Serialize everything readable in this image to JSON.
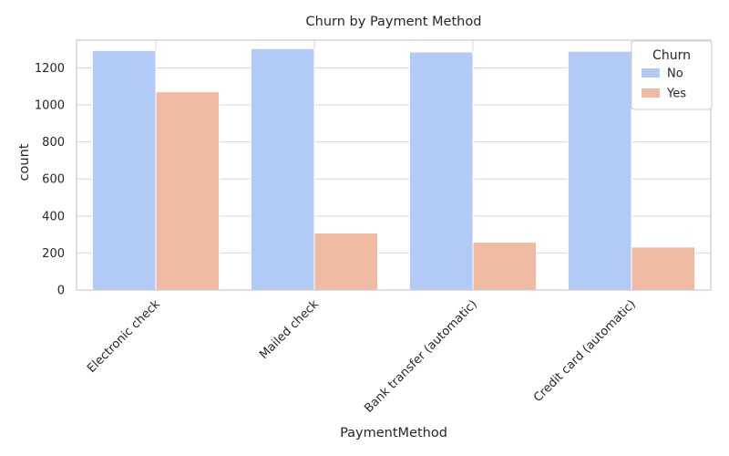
{
  "chart_data": {
    "type": "bar",
    "title": "Churn by Payment Method",
    "xlabel": "PaymentMethod",
    "ylabel": "count",
    "categories": [
      "Electronic check",
      "Mailed check",
      "Bank transfer (automatic)",
      "Credit card (automatic)"
    ],
    "series": [
      {
        "name": "No",
        "values": [
          1294,
          1304,
          1286,
          1290
        ],
        "color": "#b2cbf6"
      },
      {
        "name": "Yes",
        "values": [
          1071,
          308,
          258,
          232
        ],
        "color": "#efbba3"
      }
    ],
    "ylim": [
      0,
      1350
    ],
    "yticks": [
      0,
      200,
      400,
      600,
      800,
      1000,
      1200
    ],
    "grid": true,
    "legend": {
      "title": "Churn",
      "placement": "top-right"
    }
  }
}
